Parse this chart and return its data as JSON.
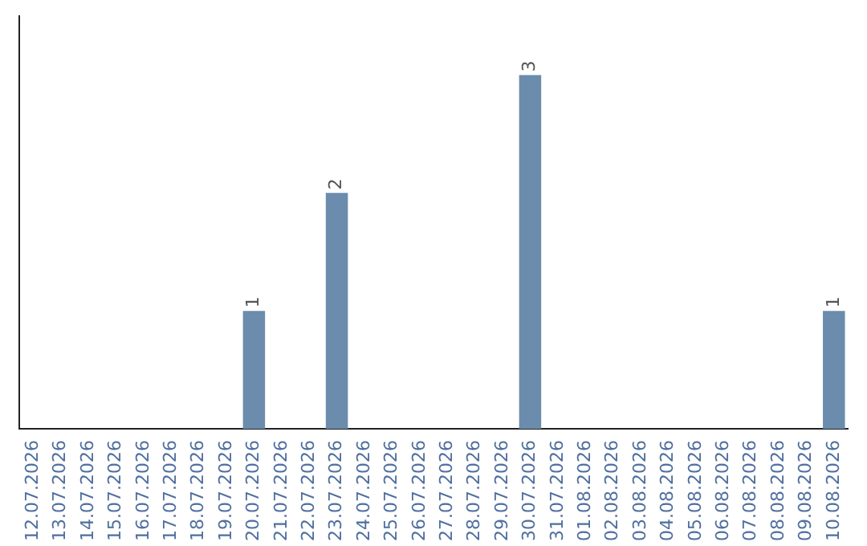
{
  "chart_data": {
    "type": "bar",
    "relative": false,
    "categories": [
      "12.07.2026",
      "13.07.2026",
      "14.07.2026",
      "15.07.2026",
      "16.07.2026",
      "17.07.2026",
      "18.07.2026",
      "19.07.2026",
      "20.07.2026",
      "21.07.2026",
      "22.07.2026",
      "23.07.2026",
      "24.07.2026",
      "25.07.2026",
      "26.07.2026",
      "27.07.2026",
      "28.07.2026",
      "29.07.2026",
      "30.07.2026",
      "31.07.2026",
      "01.08.2026",
      "02.08.2026",
      "03.08.2026",
      "04.08.2026",
      "05.08.2026",
      "06.08.2026",
      "07.08.2026",
      "08.08.2026",
      "09.08.2026",
      "10.08.2026"
    ],
    "values": [
      0,
      0,
      0,
      0,
      0,
      0,
      0,
      0,
      1,
      0,
      0,
      2,
      0,
      0,
      0,
      0,
      0,
      0,
      3,
      0,
      0,
      0,
      0,
      0,
      0,
      0,
      0,
      0,
      0,
      1
    ],
    "value_labels": [
      null,
      null,
      null,
      null,
      null,
      null,
      null,
      null,
      "1",
      null,
      null,
      "2",
      null,
      null,
      null,
      null,
      null,
      null,
      "3",
      null,
      null,
      null,
      null,
      null,
      null,
      null,
      null,
      null,
      null,
      "1"
    ],
    "color": "#6b8cac",
    "grid": false,
    "legend": false,
    "tick_labels": "x"
  }
}
